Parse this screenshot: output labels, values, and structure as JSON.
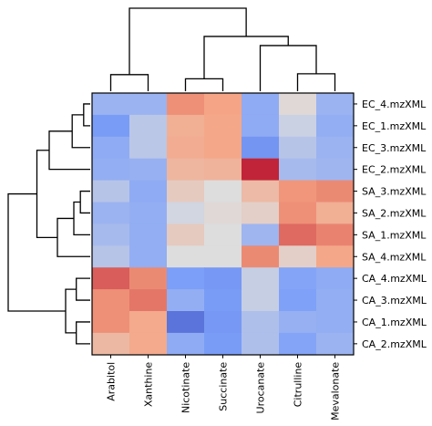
{
  "chart_data": {
    "type": "heatmap",
    "title": "",
    "colormap": "coolwarm",
    "dendrograms": {
      "rows": true,
      "columns": true
    },
    "columns": [
      "Arabitol",
      "Xanthine",
      "Nicotinate",
      "Succinate",
      "Urocanate",
      "Citrulline",
      "Mevalonate"
    ],
    "rows": [
      "EC_4.mzXML",
      "EC_1.mzXML",
      "EC_3.mzXML",
      "EC_2.mzXML",
      "SA_3.mzXML",
      "SA_2.mzXML",
      "SA_1.mzXML",
      "SA_4.mzXML",
      "CA_4.mzXML",
      "CA_3.mzXML",
      "CA_1.mzXML",
      "CA_2.mzXML"
    ],
    "values": [
      [
        0.33,
        0.33,
        0.78,
        0.74,
        0.3,
        0.52,
        0.33
      ],
      [
        0.24,
        0.41,
        0.7,
        0.73,
        0.3,
        0.45,
        0.31
      ],
      [
        0.3,
        0.41,
        0.71,
        0.73,
        0.22,
        0.4,
        0.33
      ],
      [
        0.31,
        0.32,
        0.67,
        0.68,
        0.95,
        0.36,
        0.34
      ],
      [
        0.4,
        0.3,
        0.58,
        0.5,
        0.65,
        0.77,
        0.79
      ],
      [
        0.33,
        0.31,
        0.47,
        0.52,
        0.56,
        0.78,
        0.7
      ],
      [
        0.36,
        0.31,
        0.58,
        0.5,
        0.34,
        0.84,
        0.8
      ],
      [
        0.4,
        0.31,
        0.5,
        0.5,
        0.79,
        0.56,
        0.73
      ],
      [
        0.86,
        0.79,
        0.25,
        0.23,
        0.44,
        0.27,
        0.3
      ],
      [
        0.78,
        0.82,
        0.31,
        0.24,
        0.44,
        0.26,
        0.31
      ],
      [
        0.78,
        0.72,
        0.12,
        0.23,
        0.38,
        0.32,
        0.31
      ],
      [
        0.66,
        0.72,
        0.3,
        0.24,
        0.38,
        0.27,
        0.33
      ]
    ]
  }
}
